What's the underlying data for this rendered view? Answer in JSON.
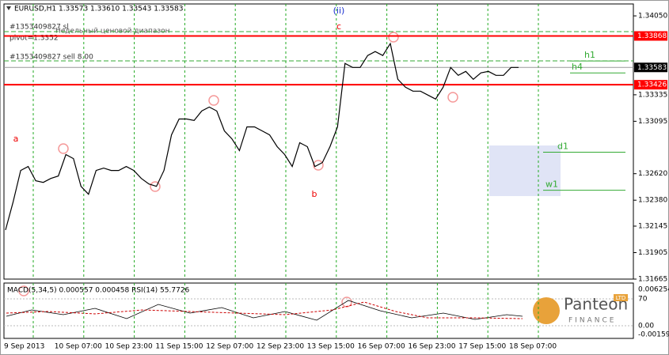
{
  "header": "EURUSD,H1 1.33573 1.33610 1.33543 1.33583",
  "chart_data": {
    "type": "line",
    "color": "#000000",
    "values": [
      1.3211,
      1.32362,
      1.32649,
      1.32685,
      1.32556,
      1.32541,
      1.32577,
      1.32599,
      1.32793,
      1.32757,
      1.32505,
      1.32434,
      1.32649,
      1.32671,
      1.32649,
      1.32649,
      1.32685,
      1.32649,
      1.32577,
      1.32527,
      1.32505,
      1.32649,
      1.32972,
      1.33116,
      1.33116,
      1.33102,
      1.33188,
      1.33224,
      1.33188,
      1.33008,
      1.32936,
      1.32829,
      1.33044,
      1.33044,
      1.33008,
      1.32972,
      1.32865,
      1.32793,
      1.32685,
      1.32901,
      1.32865,
      1.32685,
      1.32721,
      1.32865,
      1.33044,
      1.33619,
      1.33583,
      1.33583,
      1.33691,
      1.33727,
      1.33691,
      1.33799,
      1.33475,
      1.33404,
      1.33368,
      1.33368,
      1.33332,
      1.33296,
      1.33404,
      1.33583,
      1.33511,
      1.33547,
      1.33475,
      1.33533,
      1.33547,
      1.33511,
      1.33511,
      1.33583,
      1.33583
    ],
    "ylim": [
      1.31665,
      1.34158
    ],
    "yticks": [
      {
        "value": 1.3405,
        "label": "1.34050"
      },
      {
        "value": 1.33335,
        "label": "1.33335"
      },
      {
        "value": 1.33095,
        "label": "1.33095"
      },
      {
        "value": 1.3262,
        "label": "1.32620"
      },
      {
        "value": 1.3238,
        "label": "1.32380"
      },
      {
        "value": 1.32145,
        "label": "1.32145"
      },
      {
        "value": 1.31905,
        "label": "1.31905"
      },
      {
        "value": 1.31665,
        "label": "1.31665"
      }
    ],
    "x_labels": [
      "9 Sep 2013",
      "10 Sep 07:00",
      "10 Sep 23:00",
      "11 Sep 15:00",
      "12 Sep 07:00",
      "12 Sep 23:00",
      "13 Sep 15:00",
      "16 Sep 07:00",
      "16 Sep 23:00",
      "17 Sep 15:00",
      "18 Sep 07:00"
    ],
    "levels": [
      {
        "value": 1.33868,
        "color": "#ff0000"
      },
      {
        "value": 1.33426,
        "color": "#ff0000"
      },
      {
        "value": 1.33583,
        "color": "#000000"
      }
    ],
    "timeframe_levels": [
      {
        "name": "h1",
        "value": 1.33641
      },
      {
        "name": "h4",
        "value": 1.33533
      },
      {
        "name": "d1",
        "value": 1.32815
      },
      {
        "name": "w1",
        "value": 1.3247
      }
    ]
  },
  "annotations": {
    "wave_ii": "(ii)",
    "wave_c": "c",
    "wave_a": "a",
    "wave_b": "b",
    "order_sl": "#1353409827 sl",
    "range_note": "Недельный ценовой диапазон",
    "pivot": "pivot=1.3352",
    "order_sell": "#1353409827 sell 8.00"
  },
  "indicator": {
    "title": "MACD(5,34,5) 0.000557 0.000458 RSI(14) 55.7726",
    "ticks": [
      "0.006254",
      "70",
      "0.00",
      "-0.001592"
    ]
  },
  "logo": {
    "name": "Panteon",
    "sub": "FINANCE",
    "badge": "LTD"
  }
}
